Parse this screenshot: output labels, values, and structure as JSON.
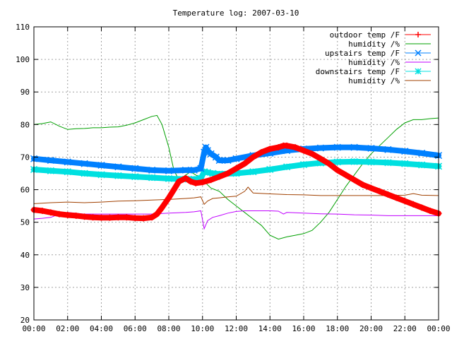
{
  "chart_data": {
    "type": "line",
    "title": "Temperature log: 2007-03-10",
    "xlabel": "",
    "ylabel": "",
    "ylim": [
      20,
      110
    ],
    "xlim": [
      0,
      24
    ],
    "grid": true,
    "legend_position": "top-right",
    "y_ticks": [
      20,
      30,
      40,
      50,
      60,
      70,
      80,
      90,
      100,
      110
    ],
    "x_tick_values": [
      0,
      2,
      4,
      6,
      8,
      10,
      12,
      14,
      16,
      18,
      20,
      22,
      24
    ],
    "x_tick_labels": [
      "00:00",
      "02:00",
      "04:00",
      "06:00",
      "08:00",
      "10:00",
      "12:00",
      "14:00",
      "16:00",
      "18:00",
      "20:00",
      "22:00",
      "00:00"
    ],
    "series": [
      {
        "name": "outdoor temp /F",
        "color": "#ff0000",
        "marker": "plus",
        "x": [
          0,
          0.5,
          1,
          1.5,
          2,
          2.5,
          3,
          3.5,
          4,
          4.5,
          5,
          5.5,
          6,
          6.5,
          7,
          7.3,
          7.6,
          8,
          8.3,
          8.6,
          9,
          9.3,
          9.6,
          10,
          10.5,
          11,
          11.5,
          12,
          12.5,
          13,
          13.5,
          14,
          14.5,
          14.8,
          15,
          15.5,
          16,
          16.5,
          17,
          17.5,
          18,
          18.5,
          19,
          19.5,
          20,
          20.5,
          21,
          21.5,
          22,
          22.5,
          23,
          23.5,
          24
        ],
        "y": [
          53.8,
          53.5,
          53,
          52.5,
          52.2,
          52,
          51.7,
          51.5,
          51.4,
          51.4,
          51.5,
          51.5,
          51.3,
          51.2,
          51.5,
          52.5,
          54.5,
          57.5,
          60,
          62.5,
          63.5,
          62.5,
          62,
          62.3,
          63,
          64,
          65,
          66.5,
          68,
          70,
          71.5,
          72.5,
          73,
          73.5,
          73.5,
          73,
          72,
          71,
          69.5,
          68,
          66,
          64.5,
          63,
          61.5,
          60.5,
          59.5,
          58.5,
          57.5,
          56.5,
          55.5,
          54.5,
          53.5,
          52.7
        ]
      },
      {
        "name": "humidity /%",
        "color": "#00a000",
        "marker": "none",
        "x": [
          0,
          0.5,
          1,
          1.5,
          2,
          2.5,
          3,
          3.5,
          4,
          4.5,
          5,
          5.5,
          6,
          6.5,
          7,
          7.3,
          7.6,
          8,
          8.3,
          8.6,
          9,
          9.3,
          9.6,
          10,
          10.2,
          10.5,
          11,
          11.5,
          12,
          12.5,
          13,
          13.5,
          14,
          14.5,
          15,
          15.5,
          16,
          16.5,
          17,
          17.5,
          18,
          18.5,
          19,
          19.5,
          20,
          20.5,
          21,
          21.5,
          22,
          22.5,
          23,
          23.5,
          24
        ],
        "y": [
          80,
          80.3,
          80.8,
          79.5,
          78.5,
          78.7,
          78.8,
          79,
          79,
          79.2,
          79.3,
          79.8,
          80.5,
          81.5,
          82.5,
          82.8,
          80,
          73,
          66,
          63,
          64.5,
          65.5,
          64.5,
          63.5,
          62,
          60.5,
          59.5,
          57,
          55,
          53,
          51,
          49,
          46,
          44.8,
          45.5,
          46,
          46.5,
          47.5,
          50,
          53,
          57,
          61,
          64.5,
          68,
          71,
          73.5,
          76,
          78.5,
          80.5,
          81.5,
          81.5,
          81.8,
          82
        ]
      },
      {
        "name": "upstairs temp /F",
        "color": "#0080ff",
        "marker": "cross",
        "x": [
          0,
          1,
          2,
          3,
          4,
          5,
          6,
          7,
          8,
          9,
          9.5,
          9.9,
          10.1,
          10.2,
          10.3,
          10.5,
          10.8,
          11,
          11.5,
          12,
          13,
          14,
          15,
          16,
          17,
          18,
          19,
          20,
          21,
          22,
          23,
          24
        ],
        "y": [
          69.5,
          69,
          68.5,
          68,
          67.5,
          67,
          66.5,
          66,
          65.8,
          66,
          66,
          66.5,
          71.5,
          73,
          72,
          71,
          70,
          69,
          69,
          69.5,
          70.5,
          71.2,
          72,
          72.5,
          72.8,
          73,
          73,
          72.7,
          72.3,
          71.8,
          71.2,
          70.5
        ]
      },
      {
        "name": "humidity /%",
        "color": "#c000ff",
        "marker": "none",
        "x": [
          0,
          0.5,
          1,
          1.5,
          2,
          3,
          4,
          5,
          6,
          7,
          8,
          9,
          9.5,
          9.9,
          10.1,
          10.3,
          10.6,
          11,
          11.5,
          12,
          12.5,
          13,
          13.5,
          14,
          14.5,
          14.8,
          15,
          16,
          17,
          18,
          19,
          20,
          21,
          22,
          23,
          24
        ],
        "y": [
          51,
          51.2,
          51.5,
          52.5,
          53,
          52.5,
          52.5,
          52.5,
          52.5,
          52.5,
          52.8,
          53,
          53.2,
          53.5,
          48,
          50.5,
          51.5,
          52,
          52.8,
          53.3,
          53.5,
          53.5,
          53.5,
          53.5,
          53.4,
          52.5,
          53,
          52.8,
          52.6,
          52.5,
          52.3,
          52.2,
          52,
          52,
          52,
          52
        ]
      },
      {
        "name": "downstairs temp /F",
        "color": "#00e0e0",
        "marker": "star",
        "x": [
          0,
          1,
          2,
          3,
          4,
          5,
          6,
          7,
          8,
          9,
          9.5,
          9.9,
          10.1,
          10.3,
          10.6,
          11,
          12,
          13,
          14,
          15,
          16,
          17,
          18,
          19,
          20,
          21,
          22,
          23,
          24
        ],
        "y": [
          66.2,
          65.8,
          65.5,
          65,
          64.6,
          64.3,
          64,
          63.7,
          63.4,
          63.2,
          63.2,
          63.5,
          65.5,
          65.3,
          65,
          64.8,
          65,
          65.5,
          66.2,
          67,
          67.7,
          68.2,
          68.5,
          68.6,
          68.5,
          68.3,
          68,
          67.6,
          67.2
        ]
      },
      {
        "name": "humidity /%",
        "color": "#a04000",
        "marker": "none",
        "x": [
          0,
          1,
          2,
          3,
          4,
          5,
          6,
          7,
          8,
          9,
          9.5,
          9.9,
          10.1,
          10.3,
          10.6,
          11,
          11.5,
          12,
          12.5,
          12.7,
          13,
          14,
          15,
          16,
          17,
          18,
          19,
          20,
          21,
          22,
          22.5,
          23,
          24
        ],
        "y": [
          55.7,
          56,
          56.2,
          56,
          56.2,
          56.5,
          56.6,
          56.8,
          57,
          57.3,
          57.5,
          57.8,
          55.5,
          56.5,
          57.3,
          57.5,
          57.8,
          58,
          59.5,
          60.8,
          59,
          58.7,
          58.5,
          58.4,
          58.2,
          58.2,
          58.2,
          58.2,
          58.2,
          58.3,
          58.8,
          58.3,
          58.2
        ]
      }
    ]
  }
}
